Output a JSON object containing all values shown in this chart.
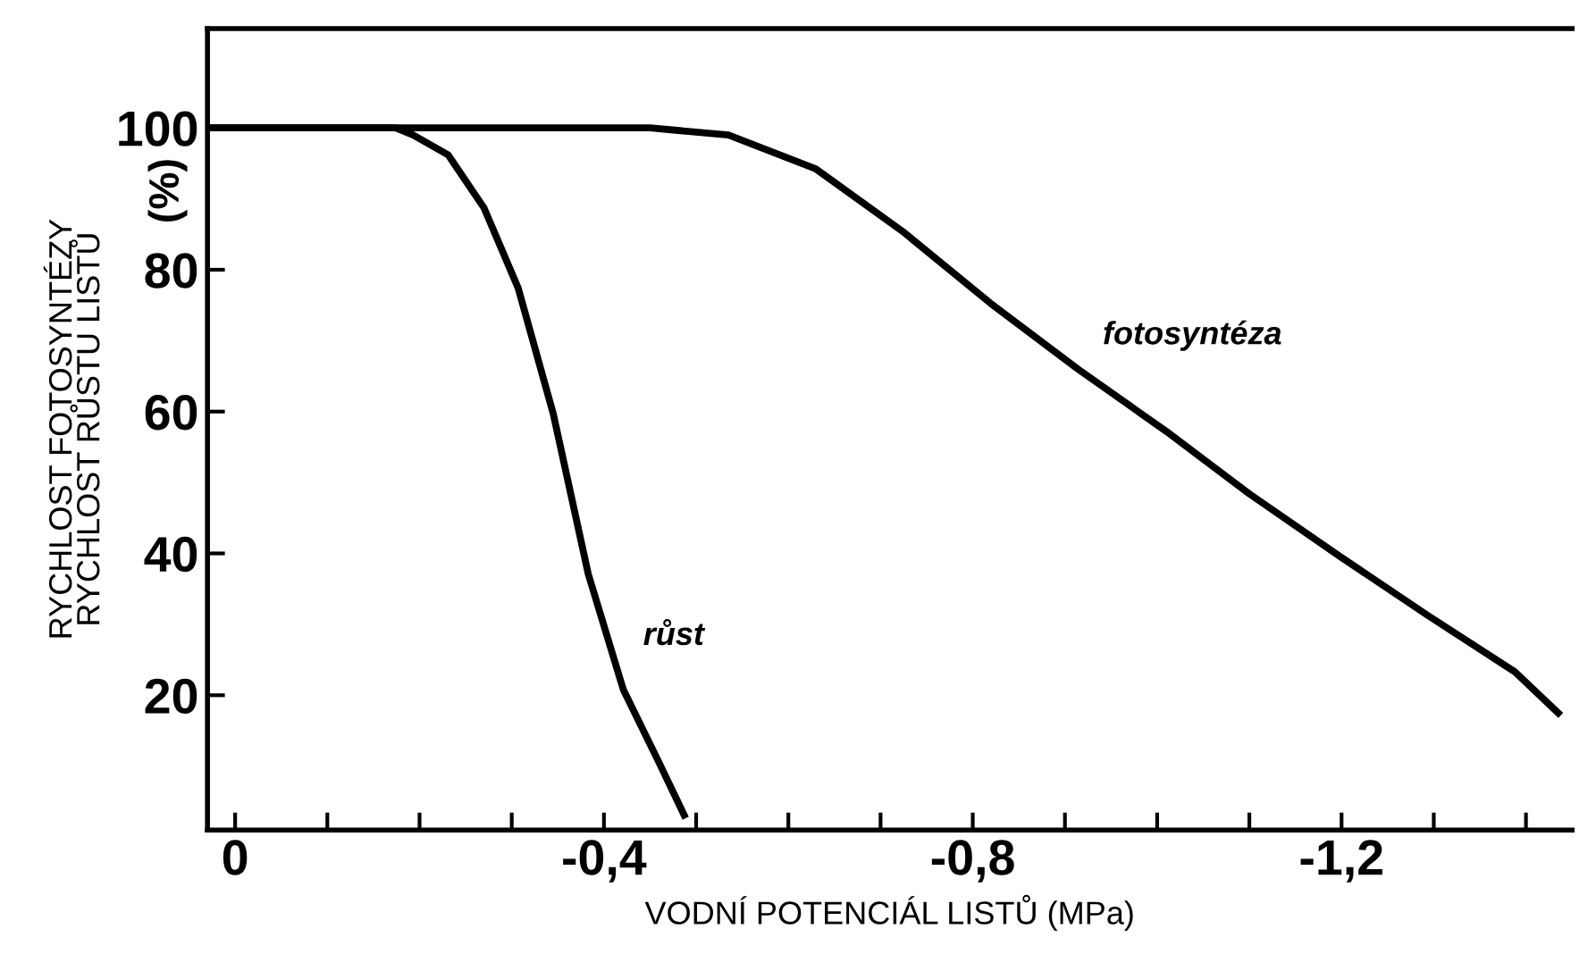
{
  "chart_data": {
    "type": "line",
    "xlabel": "VODNÍ POTENCIÁL LISTŮ (MPa)",
    "ylabel": "RYCHLOST FOTOSYNTÉZY\nRYCHLOST RŮSTU LISTŮ",
    "annotations": [
      "(%)"
    ],
    "xlim": [
      0.03,
      -1.45
    ],
    "ylim": [
      1,
      114
    ],
    "xticks": [
      0,
      {
        "value": -0.1,
        "label": null
      },
      {
        "value": -0.2,
        "label": null
      },
      {
        "value": -0.3,
        "label": null
      },
      {
        "value": -0.4,
        "label": "-0,4"
      },
      {
        "value": -0.5,
        "label": null
      },
      {
        "value": -0.6,
        "label": null
      },
      {
        "value": -0.7,
        "label": null
      },
      {
        "value": -0.8,
        "label": "-0,8"
      },
      {
        "value": -0.9,
        "label": null
      },
      {
        "value": -1.0,
        "label": null
      },
      {
        "value": -1.1,
        "label": null
      },
      {
        "value": -1.2,
        "label": "-1,2"
      },
      {
        "value": -1.3,
        "label": null
      },
      {
        "value": -1.4,
        "label": null
      }
    ],
    "yticks": [
      20,
      40,
      60,
      80,
      100
    ],
    "grid": false,
    "legend": false,
    "marker": "none",
    "line_style": "solid",
    "series": [
      {
        "name": "růst",
        "color": "#000000",
        "x": [
          0.03,
          -0.1,
          -0.174,
          -0.193,
          -0.231,
          -0.27,
          -0.307,
          -0.345,
          -0.383,
          -0.421,
          -0.459,
          -0.487
        ],
        "values": [
          100,
          100,
          100,
          99,
          96.2,
          88.7,
          77.4,
          59.7,
          37.1,
          20.8,
          10.7,
          3.1
        ]
      },
      {
        "name": "fotosyntéza",
        "color": "#000000",
        "x": [
          0.03,
          -0.2,
          -0.45,
          -0.535,
          -0.63,
          -0.724,
          -0.819,
          -0.914,
          -1.01,
          -1.1,
          -1.198,
          -1.293,
          -1.388,
          -1.435
        ],
        "values": [
          100,
          100,
          100,
          99,
          94.2,
          85.4,
          75.3,
          66,
          57.2,
          48.4,
          39.6,
          31.3,
          23.3,
          17.5
        ]
      }
    ]
  }
}
